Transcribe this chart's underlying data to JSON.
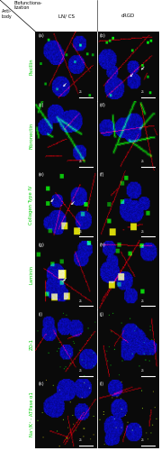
{
  "fig_width": 1.79,
  "fig_height": 5.0,
  "dpi": 100,
  "bg_color": "#ffffff",
  "header_biofunc": "Biofunctiona-\nlization",
  "header_anti": "Anti-\nbody",
  "col_headers": [
    "LN/ CS",
    "cRGD"
  ],
  "row_labels": [
    "Paxillin",
    "Fibronectin",
    "Collagen Type IV",
    "Laminin",
    "ZO-1",
    "Na⁺/K⁺ - ATPase α1"
  ],
  "row_label_color": "#00cc00",
  "header_color": "#000000",
  "panel_labels": [
    "(a)",
    "(b)",
    "(c)",
    "(d)",
    "(e)",
    "(f)",
    "(g)",
    "(h)",
    "(i)",
    "(j)",
    "(k)",
    "(l)"
  ],
  "panel_label_color": "#ffffff",
  "n_rows": 6,
  "n_cols": 2,
  "scalebar_color": "#ffffff",
  "scalebar_text": "25",
  "scalebar_text_color": "#ffffff",
  "label_fontsize": 3.8,
  "panel_label_fontsize": 3.5,
  "header_fontsize": 4.0
}
